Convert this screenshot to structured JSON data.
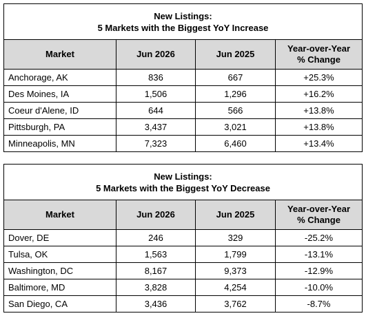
{
  "tables": [
    {
      "title": [
        "New Listings:",
        "5 Markets with the Biggest YoY Increase"
      ],
      "header": [
        [
          "Market"
        ],
        [
          "Jun 2026"
        ],
        [
          "Jun 2025"
        ],
        [
          "Year-over-Year",
          "% Change"
        ]
      ],
      "rows": [
        [
          "Anchorage, AK",
          "836",
          "667",
          "+25.3%"
        ],
        [
          "Des Moines, IA",
          "1,506",
          "1,296",
          "+16.2%"
        ],
        [
          "Coeur d'Alene, ID",
          "644",
          "566",
          "+13.8%"
        ],
        [
          "Pittsburgh, PA",
          "3,437",
          "3,021",
          "+13.8%"
        ],
        [
          "Minneapolis, MN",
          "7,323",
          "6,460",
          "+13.4%"
        ]
      ]
    },
    {
      "title": [
        "New Listings:",
        "5 Markets with the Biggest YoY Decrease"
      ],
      "header": [
        [
          "Market"
        ],
        [
          "Jun 2026"
        ],
        [
          "Jun 2025"
        ],
        [
          "Year-over-Year",
          "% Change"
        ]
      ],
      "rows": [
        [
          "Dover, DE",
          "246",
          "329",
          "-25.2%"
        ],
        [
          "Tulsa, OK",
          "1,563",
          "1,799",
          "-13.1%"
        ],
        [
          "Washington, DC",
          "8,167",
          "9,373",
          "-12.9%"
        ],
        [
          "Baltimore, MD",
          "3,828",
          "4,254",
          "-10.0%"
        ],
        [
          "San Diego, CA",
          "3,436",
          "3,762",
          "-8.7%"
        ]
      ]
    }
  ]
}
